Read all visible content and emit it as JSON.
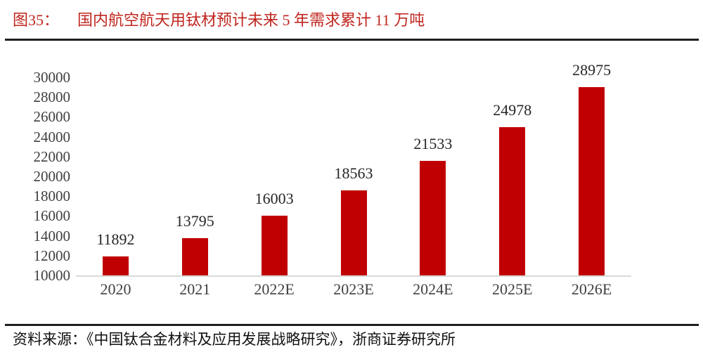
{
  "header": {
    "figure_label": "图35：",
    "title": "国内航空航天用钛材预计未来 5 年需求累计 11 万吨"
  },
  "footer": {
    "source": "资料来源：《中国钛合金材料及应用发展战略研究》，浙商证券研究所"
  },
  "colors": {
    "title_red": "#c0261f",
    "bar_red": "#c00000",
    "baseline_gray": "#d9d9d9",
    "tick_text": "#404040",
    "value_text": "#262626",
    "rule_black": "#1f1f1f"
  },
  "chart_data": {
    "type": "bar",
    "title": "国内航空航天用钛材预计未来 5 年需求累计 11 万吨",
    "categories": [
      "2020",
      "2021",
      "2022E",
      "2023E",
      "2024E",
      "2025E",
      "2026E"
    ],
    "values": [
      11892,
      13795,
      16003,
      18563,
      21533,
      24978,
      28975
    ],
    "xlabel": "",
    "ylabel": "",
    "ylim": [
      10000,
      30000
    ],
    "ytick_step": 2000,
    "yticks": [
      10000,
      12000,
      14000,
      16000,
      18000,
      20000,
      22000,
      24000,
      26000,
      28000,
      30000
    ],
    "grid": false,
    "legend": "none",
    "data_labels": true
  }
}
